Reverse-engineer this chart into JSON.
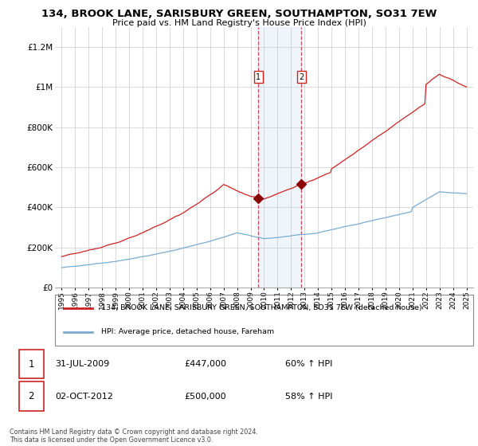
{
  "title": "134, BROOK LANE, SARISBURY GREEN, SOUTHAMPTON, SO31 7EW",
  "subtitle": "Price paid vs. HM Land Registry's House Price Index (HPI)",
  "legend_line1": "134, BROOK LANE, SARISBURY GREEN, SOUTHAMPTON, SO31 7EW (detached house)",
  "legend_line2": "HPI: Average price, detached house, Fareham",
  "footnote": "Contains HM Land Registry data © Crown copyright and database right 2024.\nThis data is licensed under the Open Government Licence v3.0.",
  "transaction1_date": "31-JUL-2009",
  "transaction1_price": "£447,000",
  "transaction1_hpi": "60% ↑ HPI",
  "transaction2_date": "02-OCT-2012",
  "transaction2_price": "£500,000",
  "transaction2_hpi": "58% ↑ HPI",
  "transaction1_x": 2009.58,
  "transaction2_x": 2012.75,
  "house_color": "#cc2222",
  "hpi_color": "#7aabcf",
  "shade_color": "#ddeeff",
  "ylim": [
    0,
    1300000
  ],
  "yticks": [
    0,
    200000,
    400000,
    600000,
    800000,
    1000000,
    1200000
  ],
  "ytick_labels": [
    "£0",
    "£200K",
    "£400K",
    "£600K",
    "£800K",
    "£1M",
    "£1.2M"
  ],
  "xmin": 1994.5,
  "xmax": 2025.5,
  "xticks": [
    1995,
    1996,
    1997,
    1998,
    1999,
    2000,
    2001,
    2002,
    2003,
    2004,
    2005,
    2006,
    2007,
    2008,
    2009,
    2010,
    2011,
    2012,
    2013,
    2014,
    2015,
    2016,
    2017,
    2018,
    2019,
    2020,
    2021,
    2022,
    2023,
    2024,
    2025
  ]
}
